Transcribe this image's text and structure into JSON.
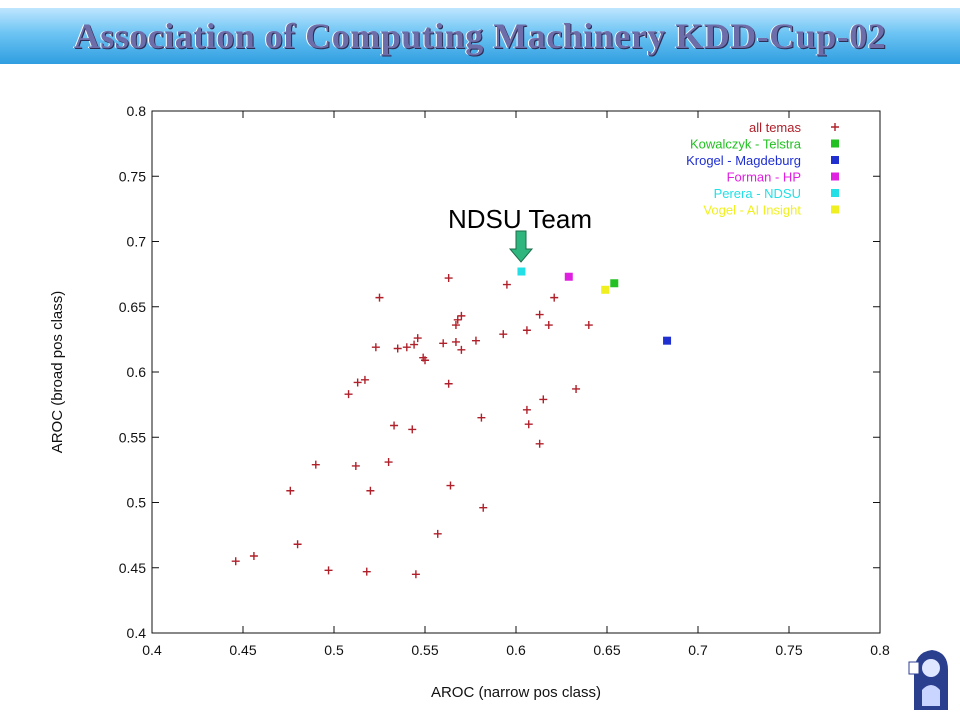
{
  "slide": {
    "title": "Association of Computing Machinery KDD-Cup-02",
    "callout": "NDSU Team"
  },
  "colors": {
    "title_fill": "#6d6daa",
    "title_bar": "#5db8ee",
    "arrow": "#2fb67f"
  },
  "chart_data": {
    "type": "scatter",
    "xlabel": "AROC (narrow pos class)",
    "ylabel": "AROC (broad pos class)",
    "xlim": [
      0.4,
      0.8
    ],
    "ylim": [
      0.4,
      0.8
    ],
    "xticks": [
      "0.4",
      "0.45",
      "0.5",
      "0.55",
      "0.6",
      "0.65",
      "0.7",
      "0.75",
      "0.8"
    ],
    "yticks": [
      "0.4",
      "0.45",
      "0.5",
      "0.55",
      "0.6",
      "0.65",
      "0.7",
      "0.75",
      "0.8"
    ],
    "grid": false,
    "legend_position": "top-right",
    "series": [
      {
        "name": "all temas",
        "marker": "plus",
        "color": "#b0202a",
        "points": [
          [
            0.446,
            0.455
          ],
          [
            0.456,
            0.459
          ],
          [
            0.476,
            0.509
          ],
          [
            0.48,
            0.468
          ],
          [
            0.49,
            0.529
          ],
          [
            0.497,
            0.448
          ],
          [
            0.508,
            0.583
          ],
          [
            0.512,
            0.528
          ],
          [
            0.513,
            0.592
          ],
          [
            0.517,
            0.594
          ],
          [
            0.518,
            0.447
          ],
          [
            0.52,
            0.509
          ],
          [
            0.523,
            0.619
          ],
          [
            0.525,
            0.657
          ],
          [
            0.53,
            0.531
          ],
          [
            0.533,
            0.559
          ],
          [
            0.535,
            0.618
          ],
          [
            0.54,
            0.619
          ],
          [
            0.543,
            0.556
          ],
          [
            0.544,
            0.621
          ],
          [
            0.545,
            0.445
          ],
          [
            0.546,
            0.626
          ],
          [
            0.549,
            0.611
          ],
          [
            0.55,
            0.609
          ],
          [
            0.557,
            0.476
          ],
          [
            0.56,
            0.622
          ],
          [
            0.563,
            0.591
          ],
          [
            0.563,
            0.672
          ],
          [
            0.564,
            0.513
          ],
          [
            0.567,
            0.636
          ],
          [
            0.567,
            0.623
          ],
          [
            0.568,
            0.64
          ],
          [
            0.57,
            0.643
          ],
          [
            0.57,
            0.617
          ],
          [
            0.578,
            0.624
          ],
          [
            0.581,
            0.565
          ],
          [
            0.582,
            0.496
          ],
          [
            0.593,
            0.629
          ],
          [
            0.595,
            0.667
          ],
          [
            0.606,
            0.571
          ],
          [
            0.606,
            0.632
          ],
          [
            0.607,
            0.56
          ],
          [
            0.613,
            0.545
          ],
          [
            0.613,
            0.644
          ],
          [
            0.615,
            0.579
          ],
          [
            0.618,
            0.636
          ],
          [
            0.621,
            0.657
          ],
          [
            0.633,
            0.587
          ],
          [
            0.64,
            0.636
          ]
        ]
      },
      {
        "name": "Kowalczyk - Telstra",
        "marker": "square",
        "color": "#22c022",
        "points": [
          [
            0.654,
            0.668
          ]
        ]
      },
      {
        "name": "Krogel - Magdeburg",
        "marker": "square",
        "color": "#1f2fd0",
        "points": [
          [
            0.683,
            0.624
          ]
        ]
      },
      {
        "name": "Forman - HP",
        "marker": "square",
        "color": "#e020e0",
        "points": [
          [
            0.629,
            0.673
          ]
        ]
      },
      {
        "name": "Perera - NDSU",
        "marker": "square",
        "color": "#22e0e6",
        "points": [
          [
            0.603,
            0.677
          ]
        ]
      },
      {
        "name": "Vogel - AI Insight",
        "marker": "square",
        "color": "#f0f020",
        "points": [
          [
            0.649,
            0.663
          ]
        ]
      }
    ]
  }
}
